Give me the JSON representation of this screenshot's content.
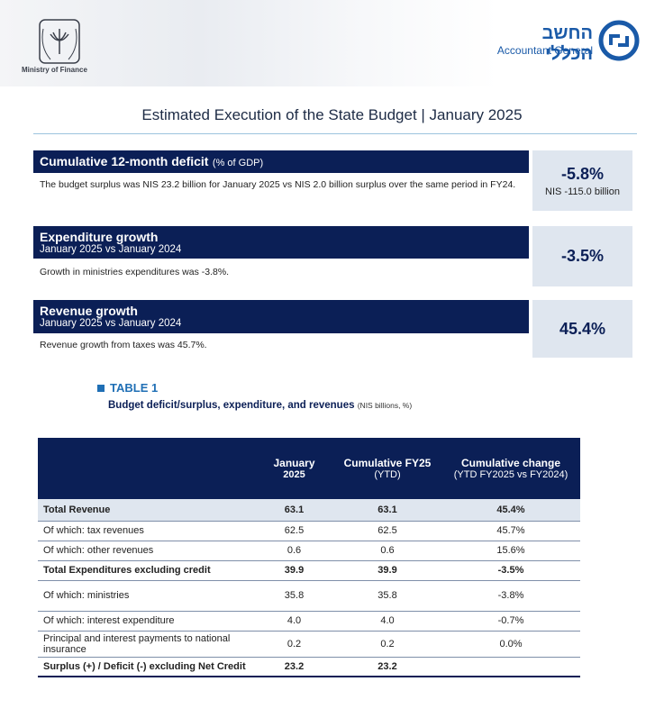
{
  "header": {
    "ministry": "Ministry of Finance",
    "ag_hebrew": "החשב הכללי",
    "ag_english": "Accountant General"
  },
  "title": "Estimated Execution of the State Budget | January 2025",
  "panels": [
    {
      "heading": "Cumulative 12-month deficit",
      "heading_unit": "(% of GDP)",
      "text": "The budget surplus was NIS 23.2 billion for January 2025 vs NIS 2.0 billion surplus over the same period in FY24.",
      "value": "-5.8%",
      "value_sub": "NIS -115.0 billion"
    },
    {
      "heading": "Expenditure growth",
      "subheading": "January 2025 vs January 2024",
      "text": "Growth in ministries expenditures was -3.8%.",
      "value": "-3.5%"
    },
    {
      "heading": "Revenue growth",
      "subheading": "January 2025 vs January 2024",
      "text": "Revenue growth from taxes was 45.7%.",
      "value": "45.4%"
    }
  ],
  "table_label": "TABLE 1",
  "table_title": "Budget deficit/surplus, expenditure, and revenues",
  "table_unit": "(NIS billions, %)",
  "table": {
    "columns": [
      {
        "line1": "January",
        "line2": "2025"
      },
      {
        "line1": "Cumulative FY25",
        "line2": "(YTD)"
      },
      {
        "line1": "Cumulative change",
        "line2": "(YTD FY2025 vs FY2024)"
      }
    ],
    "rows": [
      {
        "label": "Total Revenue",
        "cells": [
          "63.1",
          "63.1",
          "45.4%"
        ],
        "bold": true,
        "shaded": true
      },
      {
        "label": "Of which: tax revenues",
        "cells": [
          "62.5",
          "62.5",
          "45.7%"
        ],
        "bold": false,
        "shaded": false
      },
      {
        "label": "Of which: other revenues",
        "cells": [
          "0.6",
          "0.6",
          "15.6%"
        ],
        "bold": false,
        "shaded": false
      },
      {
        "label": "Total Expenditures excluding credit",
        "cells": [
          "39.9",
          "39.9",
          "-3.5%"
        ],
        "bold": true,
        "shaded": false
      },
      {
        "label": "Of which: ministries",
        "cells": [
          "35.8",
          "35.8",
          "-3.8%"
        ],
        "bold": false,
        "shaded": false
      },
      {
        "label": "Of which: interest expenditure",
        "cells": [
          "4.0",
          "4.0",
          "-0.7%"
        ],
        "bold": false,
        "shaded": false
      },
      {
        "label": "Principal and interest payments to national insurance",
        "cells": [
          "0.2",
          "0.2",
          "0.0%"
        ],
        "bold": false,
        "shaded": false
      },
      {
        "label": "Surplus (+) / Deficit (-) excluding Net Credit",
        "cells": [
          "23.2",
          "23.2"
        ],
        "bold": true,
        "shaded": false
      }
    ]
  }
}
